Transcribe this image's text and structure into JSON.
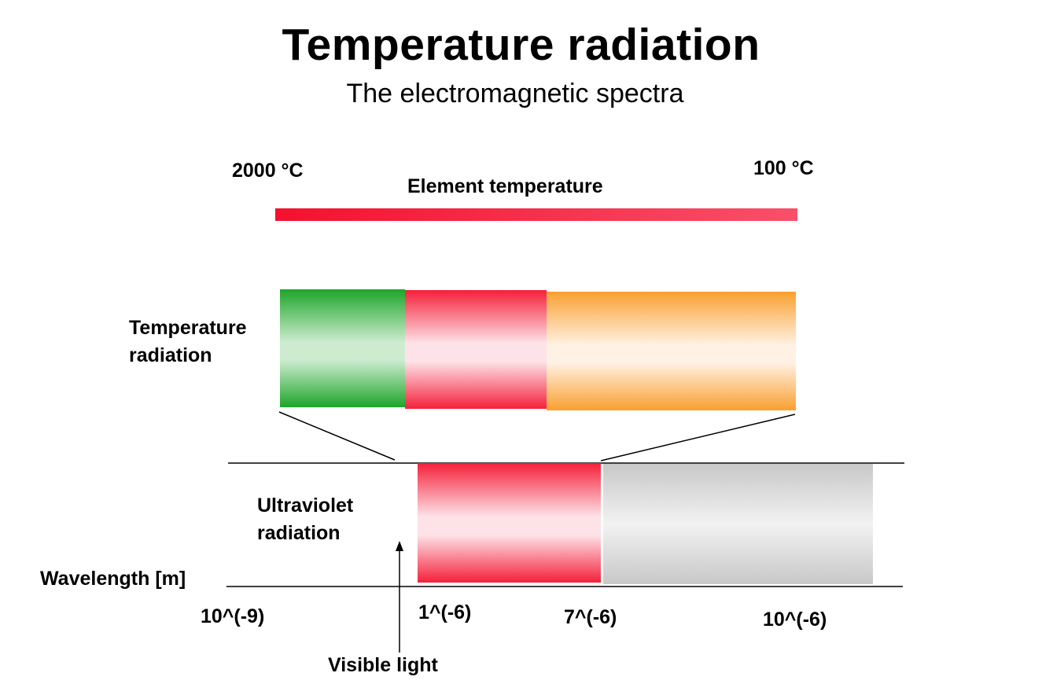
{
  "title": "Temperature radiation",
  "subtitle": "The electromagnetic spectra",
  "temperature_scale": {
    "left_label": "2000 °C",
    "right_label": "100 °C",
    "caption": "Element temperature"
  },
  "rows": {
    "temperature_radiation": {
      "line1": "Temperature",
      "line2": "radiation"
    },
    "ultraviolet_radiation": {
      "line1": "Ultraviolet",
      "line2": "radiation"
    }
  },
  "axis": {
    "label": "Wavelength [m]",
    "ticks": [
      "10^(-9)",
      "1^(-6)",
      "7^(-6)",
      "10^(-6)"
    ]
  },
  "visible_light_label": "Visible light",
  "colors": {
    "temp_bar_start": "#f5102f",
    "temp_bar_end": "#f8506a",
    "green": "#1ea52a",
    "red": "#f5203a",
    "orange": "#f9a030",
    "gray": "#c8c8c8"
  }
}
